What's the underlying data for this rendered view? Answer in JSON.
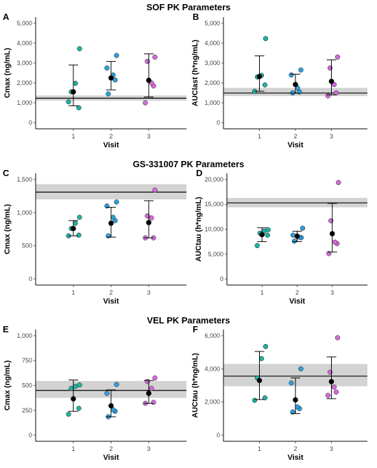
{
  "figure": {
    "row_titles": [
      "SOF PK Parameters",
      "GS-331007 PK Parameters",
      "VEL PK Parameters"
    ]
  },
  "colors": {
    "visit1": "#20B2A0",
    "visit2": "#2E9EDB",
    "visit3": "#D46ADB",
    "mean": "#000000",
    "band": "#D3D3D3",
    "errorbar": "#000000"
  },
  "chart_data": [
    {
      "panel": "A",
      "type": "scatter",
      "xlabel": "Visit",
      "ylabel": "Cmax (ng/mL)",
      "categories": [
        "1",
        "2",
        "3"
      ],
      "ylim": [
        0,
        5000
      ],
      "yticks": [
        0,
        1000,
        2000,
        3000,
        4000,
        5000
      ],
      "ytick_labels": [
        "0",
        "1,000",
        "2,000",
        "3,000",
        "4,000",
        "5,000"
      ],
      "reference": {
        "line": 1230,
        "band": [
          1100,
          1370
        ]
      },
      "series": [
        {
          "visit": "1",
          "points": [
            1050,
            750,
            1550,
            1980,
            3720
          ],
          "mean": 1550,
          "error": [
            850,
            2900
          ]
        },
        {
          "visit": "2",
          "points": [
            1450,
            2150,
            2400,
            2750,
            3380
          ],
          "mean": 2250,
          "error": [
            1650,
            3080
          ]
        },
        {
          "visit": "3",
          "points": [
            1000,
            1850,
            2000,
            3080,
            3300
          ],
          "mean": 2130,
          "error": [
            1290,
            3460
          ]
        }
      ]
    },
    {
      "panel": "B",
      "type": "scatter",
      "xlabel": "Visit",
      "ylabel": "AUClast (h*ng/mL)",
      "categories": [
        "1",
        "2",
        "3"
      ],
      "ylim": [
        0,
        5000
      ],
      "yticks": [
        0,
        1000,
        2000,
        3000,
        4000,
        5000
      ],
      "ytick_labels": [
        "0",
        "1,000",
        "2,000",
        "3,000",
        "4,000",
        "5,000"
      ],
      "reference": {
        "line": 1490,
        "band": [
          1340,
          1750
        ]
      },
      "series": [
        {
          "visit": "1",
          "points": [
            1580,
            1900,
            2300,
            2380,
            4230
          ],
          "mean": 2320,
          "error": [
            1580,
            3360
          ]
        },
        {
          "visit": "2",
          "points": [
            1500,
            1550,
            1750,
            2400,
            2650
          ],
          "mean": 1920,
          "error": [
            1480,
            2440
          ]
        },
        {
          "visit": "3",
          "points": [
            1350,
            1500,
            1920,
            2750,
            3300
          ],
          "mean": 2080,
          "error": [
            1400,
            3160
          ]
        }
      ]
    },
    {
      "panel": "C",
      "type": "scatter",
      "xlabel": "Visit",
      "ylabel": "Cmax (ng/mL)",
      "categories": [
        "1",
        "2",
        "3"
      ],
      "ylim": [
        0,
        1500
      ],
      "yticks": [
        0,
        500,
        1000,
        1500
      ],
      "ytick_labels": [
        "0",
        "500",
        "1,000",
        "1,500"
      ],
      "reference": {
        "line": 1310,
        "band": [
          1200,
          1430
        ]
      },
      "series": [
        {
          "visit": "1",
          "points": [
            650,
            660,
            760,
            840,
            930
          ],
          "mean": 760,
          "error": [
            650,
            880
          ]
        },
        {
          "visit": "2",
          "points": [
            650,
            880,
            930,
            1100,
            1160
          ],
          "mean": 840,
          "error": [
            630,
            1080
          ]
        },
        {
          "visit": "3",
          "points": [
            620,
            620,
            920,
            950,
            1340
          ],
          "mean": 850,
          "error": [
            620,
            1180
          ]
        }
      ]
    },
    {
      "panel": "D",
      "type": "scatter",
      "xlabel": "Visit",
      "ylabel": "AUCtau (h*ng/mL)",
      "categories": [
        "1",
        "2",
        "3"
      ],
      "ylim": [
        0,
        20000
      ],
      "yticks": [
        0,
        5000,
        10000,
        15000,
        20000
      ],
      "ytick_labels": [
        "0",
        "5,000",
        "10,000",
        "15,000",
        "20,000"
      ],
      "reference": {
        "line": 15300,
        "band": [
          14400,
          16300
        ]
      },
      "series": [
        {
          "visit": "1",
          "points": [
            6700,
            8800,
            9200,
            9600,
            9900
          ],
          "mean": 8900,
          "error": [
            7500,
            10300
          ]
        },
        {
          "visit": "2",
          "points": [
            7600,
            8300,
            8400,
            8800,
            10200
          ],
          "mean": 8600,
          "error": [
            7500,
            9600
          ]
        },
        {
          "visit": "3",
          "points": [
            5100,
            7100,
            7400,
            11700,
            19400
          ],
          "mean": 9100,
          "error": [
            5400,
            15200
          ]
        }
      ]
    },
    {
      "panel": "E",
      "type": "scatter",
      "xlabel": "Visit",
      "ylabel": "Cmax (ng/mL)",
      "categories": [
        "1",
        "2",
        "3"
      ],
      "ylim": [
        0,
        1000
      ],
      "yticks": [
        0,
        250,
        500,
        750,
        1000
      ],
      "ytick_labels": [
        "0",
        "250",
        "500",
        "750",
        "1,000"
      ],
      "reference": {
        "line": 450,
        "band": [
          375,
          545
        ]
      },
      "series": [
        {
          "visit": "1",
          "points": [
            210,
            270,
            470,
            490,
            505
          ],
          "mean": 365,
          "error": [
            240,
            555
          ]
        },
        {
          "visit": "2",
          "points": [
            185,
            240,
            255,
            420,
            510
          ],
          "mean": 295,
          "error": [
            185,
            455
          ]
        },
        {
          "visit": "3",
          "points": [
            320,
            330,
            470,
            540,
            575
          ],
          "mean": 420,
          "error": [
            320,
            550
          ]
        }
      ]
    },
    {
      "panel": "F",
      "type": "scatter",
      "xlabel": "Visit",
      "ylabel": "AUCtau (h*ng/mL)",
      "categories": [
        "1",
        "2",
        "3"
      ],
      "ylim": [
        0,
        6000
      ],
      "yticks": [
        0,
        2000,
        4000,
        6000
      ],
      "ytick_labels": [
        "0",
        "2,000",
        "4,000",
        "6,000"
      ],
      "reference": {
        "line": 3560,
        "band": [
          2950,
          4300
        ]
      },
      "series": [
        {
          "visit": "1",
          "points": [
            2100,
            2250,
            3450,
            4620,
            5350
          ],
          "mean": 3300,
          "error": [
            2150,
            5050
          ]
        },
        {
          "visit": "2",
          "points": [
            1400,
            1600,
            1700,
            3150,
            4000
          ],
          "mean": 2130,
          "error": [
            1300,
            3450
          ]
        },
        {
          "visit": "3",
          "points": [
            2400,
            2600,
            2900,
            3800,
            5880
          ],
          "mean": 3230,
          "error": [
            2200,
            4720
          ]
        }
      ]
    }
  ]
}
